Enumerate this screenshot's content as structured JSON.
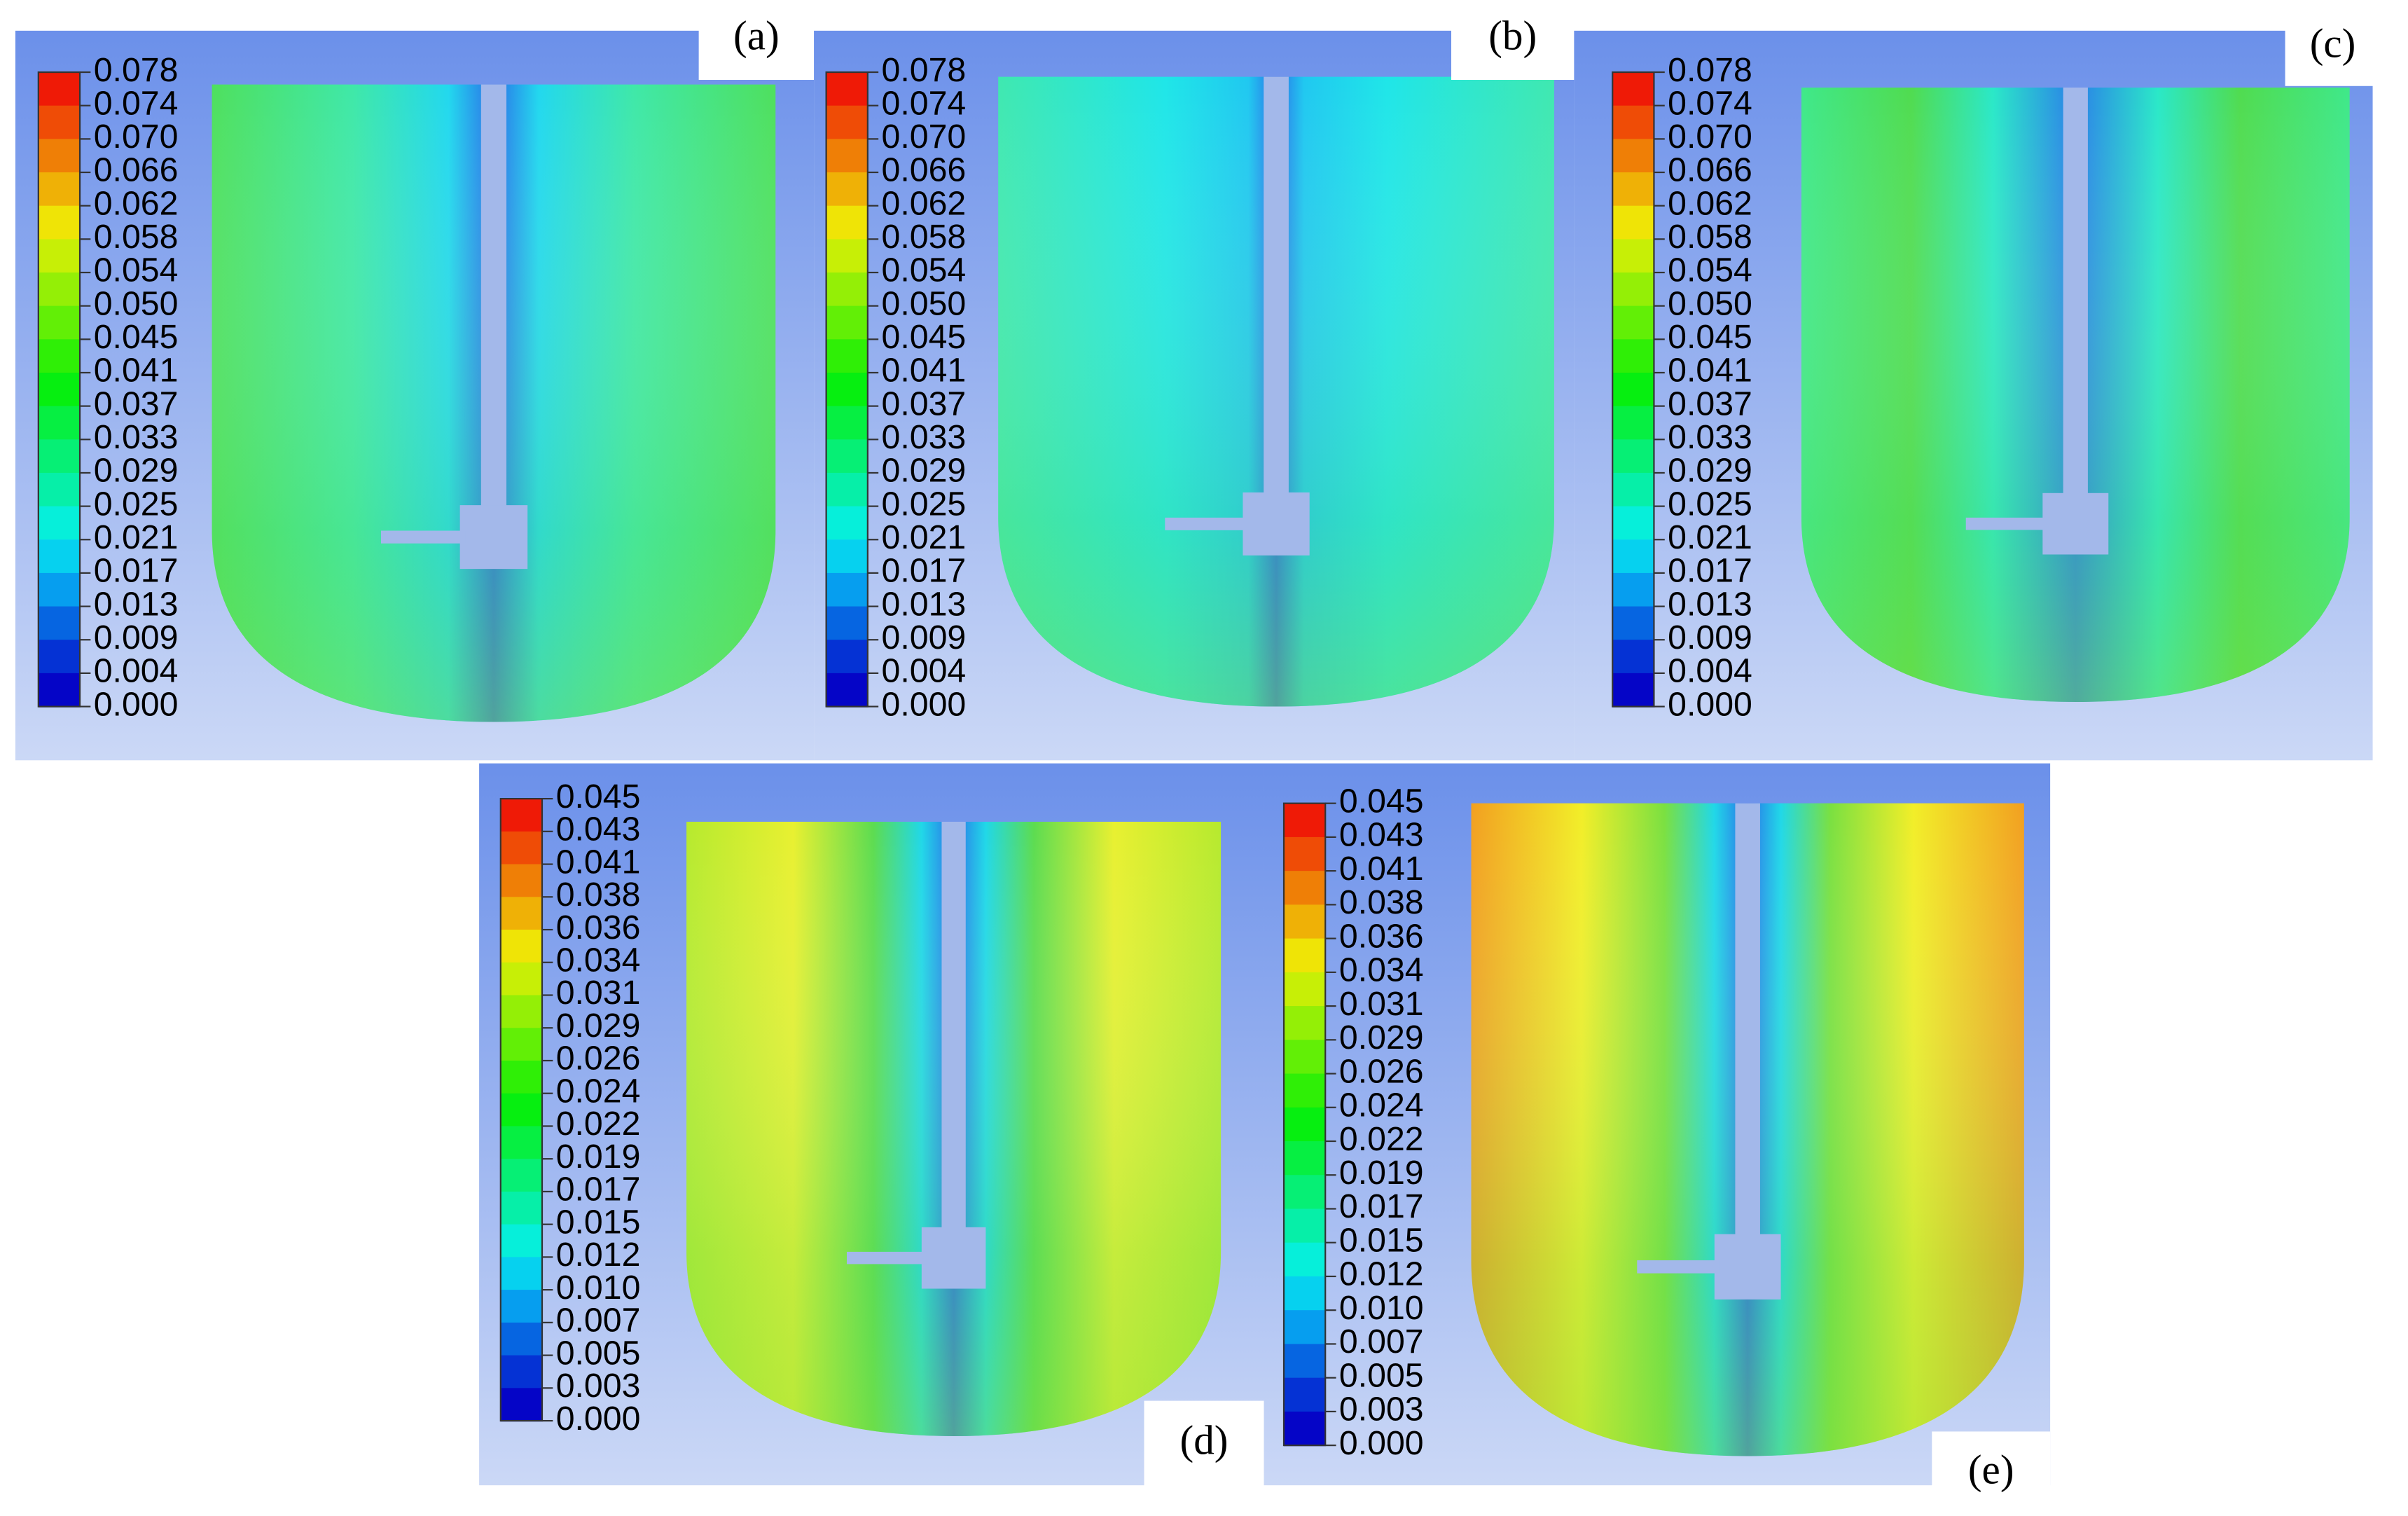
{
  "panels": [
    {
      "label": "(a)",
      "colorbar": [
        "0.078",
        "0.074",
        "0.070",
        "0.066",
        "0.062",
        "0.058",
        "0.054",
        "0.050",
        "0.045",
        "0.041",
        "0.037",
        "0.033",
        "0.029",
        "0.025",
        "0.021",
        "0.017",
        "0.013",
        "0.009",
        "0.004",
        "0.000"
      ]
    },
    {
      "label": "(b)",
      "colorbar": [
        "0.078",
        "0.074",
        "0.070",
        "0.066",
        "0.062",
        "0.058",
        "0.054",
        "0.050",
        "0.045",
        "0.041",
        "0.037",
        "0.033",
        "0.029",
        "0.025",
        "0.021",
        "0.017",
        "0.013",
        "0.009",
        "0.004",
        "0.000"
      ]
    },
    {
      "label": "(c)",
      "colorbar": [
        "0.078",
        "0.074",
        "0.070",
        "0.066",
        "0.062",
        "0.058",
        "0.054",
        "0.050",
        "0.045",
        "0.041",
        "0.037",
        "0.033",
        "0.029",
        "0.025",
        "0.021",
        "0.017",
        "0.013",
        "0.009",
        "0.004",
        "0.000"
      ]
    },
    {
      "label": "(d)",
      "colorbar": [
        "0.045",
        "0.043",
        "0.041",
        "0.038",
        "0.036",
        "0.034",
        "0.031",
        "0.029",
        "0.026",
        "0.024",
        "0.022",
        "0.019",
        "0.017",
        "0.015",
        "0.012",
        "0.010",
        "0.007",
        "0.005",
        "0.003",
        "0.000"
      ]
    },
    {
      "label": "(e)",
      "colorbar": [
        "0.045",
        "0.043",
        "0.041",
        "0.038",
        "0.036",
        "0.034",
        "0.031",
        "0.029",
        "0.026",
        "0.024",
        "0.022",
        "0.019",
        "0.017",
        "0.015",
        "0.012",
        "0.010",
        "0.007",
        "0.005",
        "0.003",
        "0.000"
      ]
    }
  ]
}
